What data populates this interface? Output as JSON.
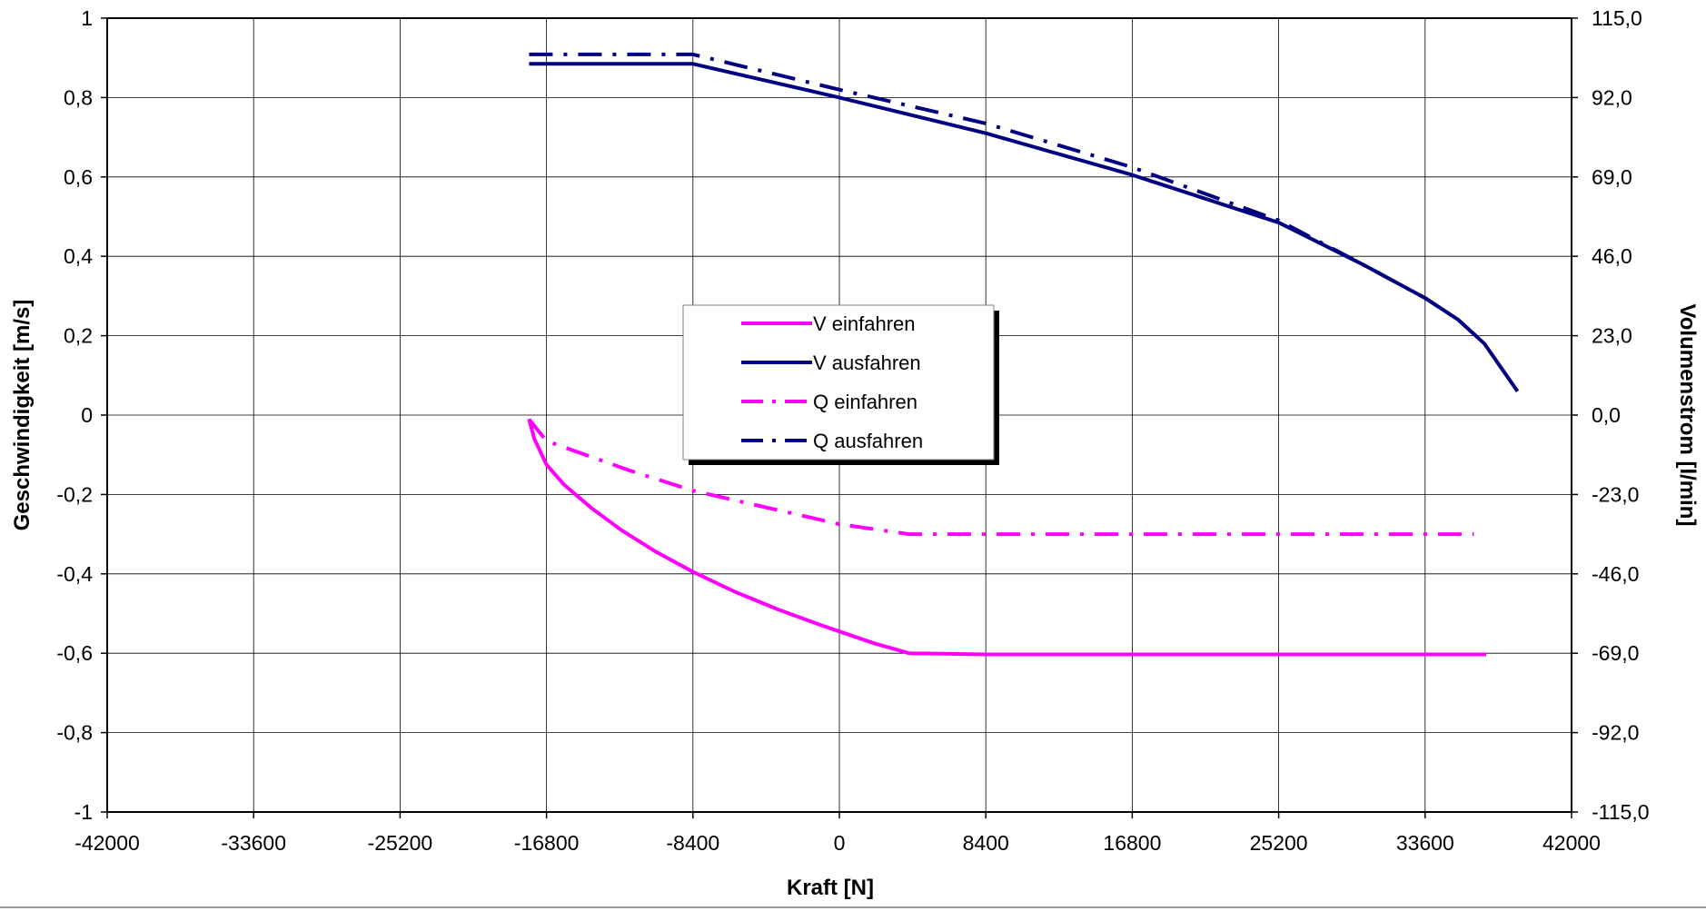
{
  "chart_data": {
    "type": "line",
    "xlabel": "Kraft [N]",
    "ylabel": "Geschwindigkeit [m/s]",
    "y2label": "Volumenstrom [l/min]",
    "xlim": [
      -42000,
      42000
    ],
    "ylim": [
      -1,
      1
    ],
    "y2lim": [
      -115,
      115
    ],
    "grid": true,
    "x_ticks": [
      -42000,
      -33600,
      -25200,
      -16800,
      -8400,
      0,
      8400,
      16800,
      25200,
      33600,
      42000
    ],
    "x_tick_labels": [
      "-42000",
      "-33600",
      "-25200",
      "-16800",
      "-8400",
      "0",
      "8400",
      "16800",
      "25200",
      "33600",
      "42000"
    ],
    "y_ticks": [
      1,
      0.8,
      0.6,
      0.4,
      0.2,
      0,
      -0.2,
      -0.4,
      -0.6,
      -0.8,
      -1
    ],
    "y_tick_labels": [
      "1",
      "0,8",
      "0,6",
      "0,4",
      "0,2",
      "0",
      "-0,2",
      "-0,4",
      "-0,6",
      "-0,8",
      "-1"
    ],
    "y2_tick_labels": [
      "115,0",
      "92,0",
      "69,0",
      "46,0",
      "23,0",
      "0,0",
      "-23,0",
      "-46,0",
      "-69,0",
      "-92,0",
      "-115,0"
    ],
    "legend_position": "center",
    "series": [
      {
        "name": "V einfahren",
        "color": "#FF00FF",
        "style": "solid",
        "axis": "left",
        "x": [
          -17800,
          -17500,
          -16800,
          -15800,
          -14200,
          -12500,
          -10500,
          -8400,
          -6000,
          -3500,
          -1000,
          0,
          2000,
          4000,
          8400,
          16800,
          25200,
          33600,
          37100
        ],
        "y": [
          -0.01,
          -0.06,
          -0.125,
          -0.175,
          -0.235,
          -0.29,
          -0.345,
          -0.395,
          -0.445,
          -0.49,
          -0.53,
          -0.545,
          -0.575,
          -0.6,
          -0.603,
          -0.603,
          -0.603,
          -0.603,
          -0.603
        ]
      },
      {
        "name": "V ausfahren",
        "color": "#000080",
        "style": "solid",
        "axis": "left",
        "x": [
          -17800,
          -8400,
          0,
          8400,
          16800,
          25200,
          30000,
          33600,
          35500,
          37000,
          38900
        ],
        "y": [
          0.885,
          0.885,
          0.8,
          0.71,
          0.605,
          0.485,
          0.38,
          0.295,
          0.24,
          0.18,
          0.06
        ]
      },
      {
        "name": "Q einfahren",
        "color": "#FF00FF",
        "style": "dashdot",
        "axis": "right",
        "x": [
          -17800,
          -16800,
          -12000,
          -8400,
          0,
          4000,
          8400,
          16800,
          25200,
          33600,
          36400
        ],
        "y": [
          -1.2,
          -7.5,
          -16.1,
          -21.9,
          -31.6,
          -34.5,
          -34.5,
          -34.5,
          -34.5,
          -34.5,
          -34.5
        ]
      },
      {
        "name": "Q ausfahren",
        "color": "#000080",
        "style": "dashdot",
        "axis": "right",
        "x": [
          -17800,
          -8400,
          0,
          8400,
          16800,
          25200,
          30000,
          33600,
          35500,
          37000
        ],
        "y": [
          104.5,
          104.5,
          94.3,
          84.5,
          71.8,
          56.4,
          43.7,
          33.9,
          27.6,
          20.7
        ]
      }
    ]
  }
}
